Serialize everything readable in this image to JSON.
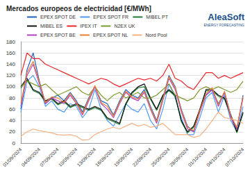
{
  "chart_data": {
    "type": "line",
    "title": "Mercados europeos de electricidad [€/MWh]",
    "annotations": [
      "AleaSoft",
      "ENERGY FORECASTING"
    ],
    "categories": [
      "01/09/2024",
      null,
      null,
      "04/09/2024",
      null,
      null,
      "07/09/2024",
      null,
      null,
      "10/09/2024",
      null,
      null,
      "13/09/2024",
      null,
      null,
      "16/09/2024",
      null,
      null,
      "19/09/2024",
      null,
      null,
      "22/09/2024",
      null,
      null,
      "25/09/2024",
      null,
      null,
      "28/09/2024",
      null,
      null,
      "01/10/2024",
      null,
      null,
      "04/10/2024",
      null,
      null,
      "07/10/2024"
    ],
    "series": [
      {
        "name": "EPEX SPOT DE",
        "color": "#1f5fbf",
        "values": [
          60,
          130,
          160,
          110,
          70,
          80,
          85,
          75,
          90,
          75,
          55,
          80,
          100,
          75,
          70,
          50,
          75,
          95,
          85,
          80,
          95,
          65,
          40,
          80,
          120,
          100,
          60,
          30,
          20,
          60,
          85,
          95,
          70,
          90,
          50,
          25,
          85
        ]
      },
      {
        "name": "EPEX SPOT FR",
        "color": "#4f9bef",
        "values": [
          55,
          110,
          120,
          100,
          65,
          75,
          60,
          55,
          70,
          65,
          45,
          60,
          95,
          60,
          40,
          30,
          50,
          70,
          60,
          55,
          70,
          40,
          25,
          60,
          105,
          80,
          45,
          15,
          15,
          45,
          80,
          90,
          55,
          85,
          40,
          20,
          65
        ]
      },
      {
        "name": "MIBEL PT",
        "color": "#1e7b34",
        "values": [
          98,
          112,
          93,
          88,
          73,
          78,
          68,
          73,
          63,
          68,
          63,
          58,
          63,
          58,
          43,
          38,
          33,
          68,
          88,
          98,
          100,
          78,
          58,
          83,
          93,
          83,
          38,
          18,
          28,
          58,
          93,
          93,
          83,
          78,
          48,
          18,
          53
        ]
      },
      {
        "name": "MIBEL ES",
        "color": "#111111",
        "values": [
          100,
          115,
          95,
          90,
          75,
          80,
          70,
          75,
          65,
          70,
          65,
          60,
          65,
          60,
          45,
          40,
          35,
          70,
          90,
          100,
          105,
          80,
          60,
          85,
          95,
          85,
          40,
          20,
          30,
          60,
          95,
          95,
          85,
          80,
          50,
          20,
          55
        ]
      },
      {
        "name": "IPEX IT",
        "color": "#e8262a",
        "values": [
          120,
          160,
          150,
          150,
          140,
          135,
          130,
          125,
          120,
          115,
          110,
          105,
          110,
          115,
          112,
          105,
          100,
          105,
          110,
          115,
          112,
          115,
          110,
          120,
          140,
          115,
          110,
          100,
          95,
          110,
          125,
          125,
          115,
          120,
          115,
          120,
          125
        ]
      },
      {
        "name": "N2EX UK",
        "color": "#7c9a2f",
        "values": [
          100,
          110,
          105,
          100,
          105,
          95,
          85,
          90,
          95,
          100,
          90,
          85,
          100,
          85,
          75,
          85,
          90,
          80,
          85,
          90,
          80,
          80,
          85,
          95,
          105,
          85,
          80,
          75,
          80,
          95,
          100,
          95,
          100,
          95,
          90,
          95,
          110
        ]
      },
      {
        "name": "EPEX SPOT BE",
        "color": "#b040c0",
        "values": [
          65,
          120,
          140,
          105,
          70,
          80,
          75,
          70,
          85,
          70,
          50,
          75,
          100,
          70,
          60,
          45,
          70,
          90,
          80,
          75,
          90,
          60,
          35,
          75,
          115,
          95,
          55,
          25,
          20,
          55,
          85,
          95,
          65,
          90,
          45,
          25,
          80
        ]
      },
      {
        "name": "EPEX SPOT NL",
        "color": "#ed7d31",
        "values": [
          70,
          125,
          145,
          108,
          72,
          82,
          80,
          72,
          88,
          72,
          52,
          78,
          102,
          72,
          65,
          48,
          72,
          92,
          82,
          78,
          92,
          62,
          38,
          78,
          118,
          98,
          58,
          28,
          22,
          58,
          88,
          98,
          68,
          92,
          48,
          28,
          82
        ]
      },
      {
        "name": "Nord Pool",
        "color": "#f4b183",
        "values": [
          12,
          20,
          25,
          22,
          20,
          18,
          15,
          14,
          15,
          12,
          5,
          6,
          15,
          20,
          25,
          28,
          25,
          30,
          35,
          30,
          33,
          28,
          30,
          35,
          25,
          15,
          15,
          15,
          10,
          13,
          25,
          40,
          55,
          45,
          43,
          40,
          35
        ]
      }
    ],
    "ylim": [
      0,
      180
    ],
    "yticks": [
      0,
      20,
      40,
      60,
      80,
      100,
      120,
      140,
      160,
      180
    ],
    "grid": true,
    "legend": "top"
  }
}
